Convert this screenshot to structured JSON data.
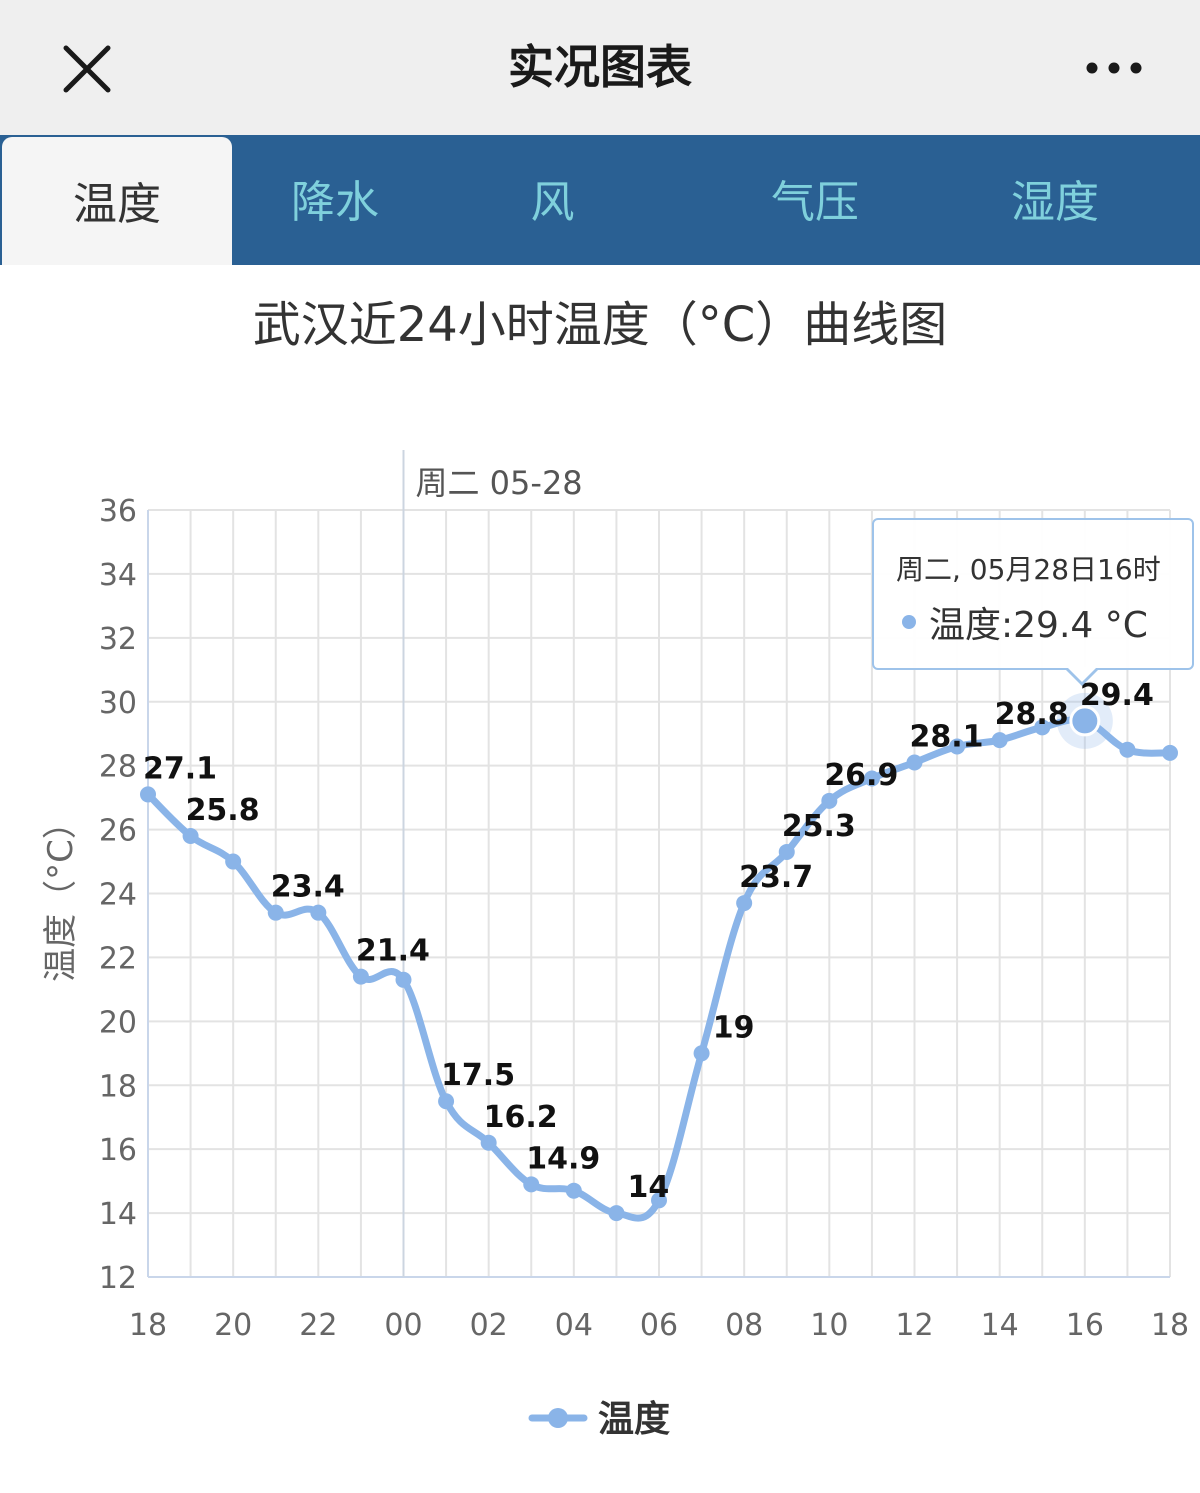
{
  "header": {
    "title": "实况图表",
    "close_icon": "close-icon",
    "more_icon": "more-dots-icon"
  },
  "tabs": [
    {
      "label": "温度",
      "active": true
    },
    {
      "label": "降水",
      "active": false
    },
    {
      "label": "风",
      "active": false
    },
    {
      "label": "气压",
      "active": false
    },
    {
      "label": "湿度",
      "active": false
    }
  ],
  "colors": {
    "topbar": "#efefef",
    "tabbar": "#2a6093",
    "tab_text": "#7fd0dc",
    "series": "#8ab4e8",
    "grid": "#e3e3e3"
  },
  "tooltip": {
    "date": "周二, 05月28日16时",
    "value": "温度:29.4 °C"
  },
  "chart_data": {
    "type": "line",
    "title": "武汉近24小时温度（°C）曲线图",
    "ylabel": "温度（°C）",
    "xlabel": "",
    "ylim": [
      12,
      36
    ],
    "yticks": [
      "12",
      "14",
      "16",
      "18",
      "20",
      "22",
      "24",
      "26",
      "28",
      "30",
      "32",
      "34",
      "36"
    ],
    "xticks": [
      "18",
      "20",
      "22",
      "00",
      "02",
      "04",
      "06",
      "08",
      "10",
      "12",
      "14",
      "16",
      "18"
    ],
    "date_marker": {
      "label": "周二 05-28",
      "hour": 24
    },
    "grid": true,
    "legend_position": "bottom",
    "series": [
      {
        "name": "温度",
        "hours": [
          18,
          19,
          20,
          21,
          22,
          23,
          24,
          25,
          26,
          27,
          28,
          29,
          30,
          31,
          32,
          33,
          34,
          35,
          36,
          37,
          38,
          39,
          40,
          41,
          42
        ],
        "values": [
          27.1,
          25.8,
          25.0,
          23.4,
          23.4,
          21.4,
          21.3,
          17.5,
          16.2,
          14.9,
          14.7,
          14.0,
          14.4,
          19.0,
          23.7,
          25.3,
          26.9,
          27.6,
          28.1,
          28.6,
          28.8,
          29.2,
          29.4,
          28.5,
          28.4
        ],
        "labels": [
          "27.1",
          "25.8",
          "",
          "23.4",
          "",
          "21.4",
          "",
          "17.5",
          "16.2",
          "14.9",
          "",
          "14",
          "",
          "19",
          "23.7",
          "25.3",
          "26.9",
          "",
          "28.1",
          "",
          "28.8",
          "",
          "29.4",
          "",
          ""
        ]
      }
    ],
    "highlight_hour": 40
  }
}
